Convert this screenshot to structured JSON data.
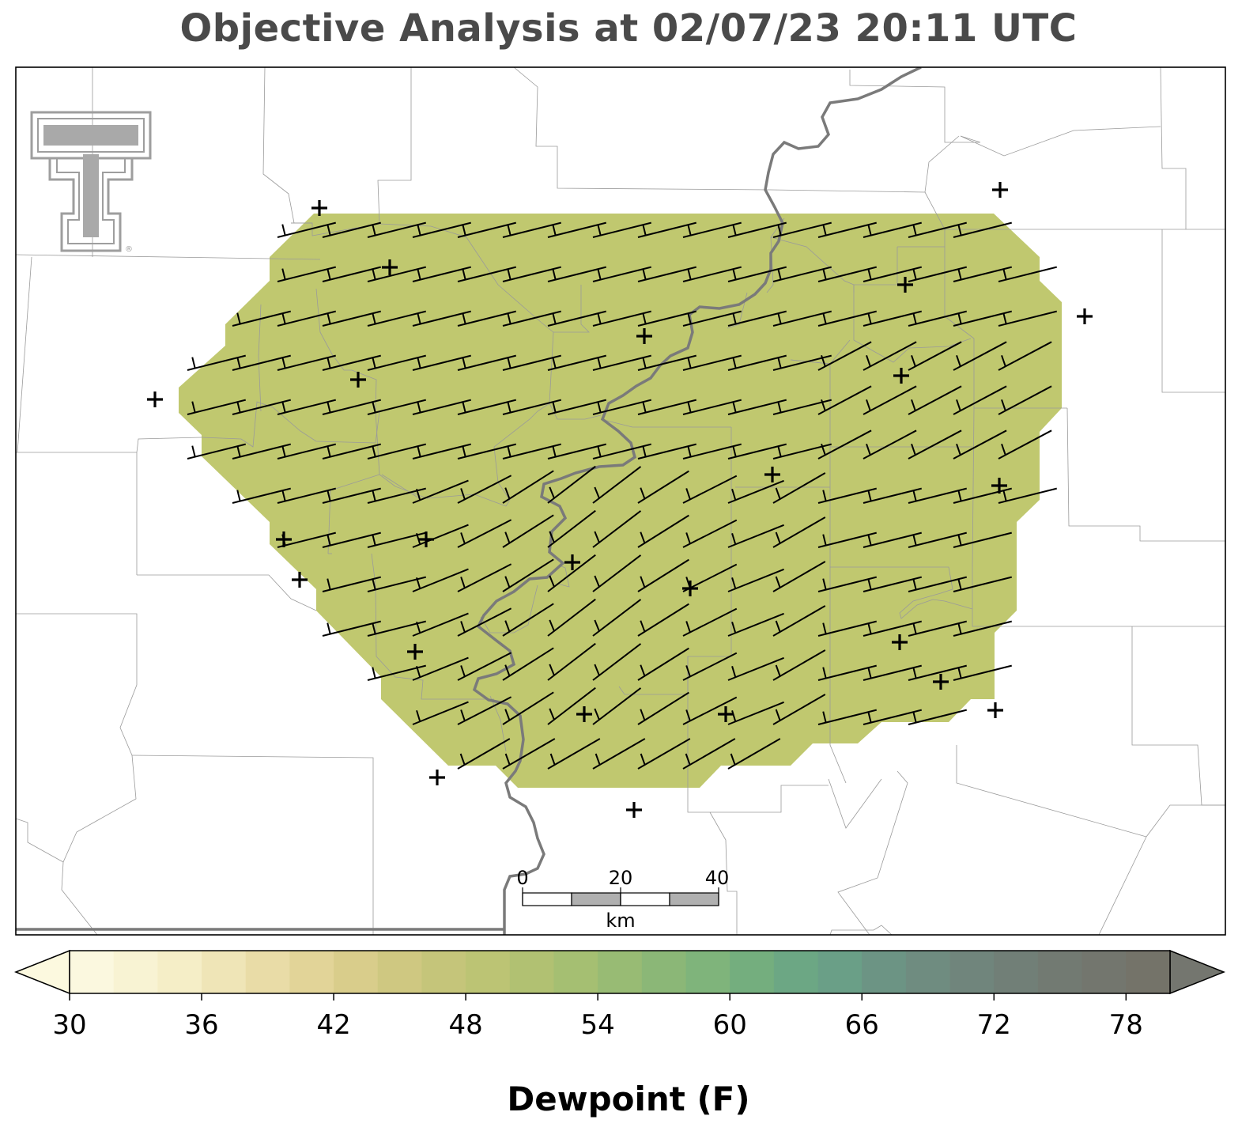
{
  "title": "Objective Analysis at 02/07/23 20:11 UTC",
  "colorbar": {
    "label": "Dewpoint (F)",
    "ticks": [
      "30",
      "36",
      "42",
      "48",
      "54",
      "60",
      "66",
      "72",
      "78"
    ],
    "min": 30,
    "max": 80,
    "step": 2,
    "colors": [
      "#fbf8df",
      "#f8f3d3",
      "#f5eec7",
      "#efe5b7",
      "#e9dca7",
      "#e2d498",
      "#d9cd8b",
      "#cfc881",
      "#c5c57a",
      "#bcc474",
      "#b1c172",
      "#a5bf72",
      "#98bb74",
      "#8bb777",
      "#7fb47b",
      "#74ae7e",
      "#6ca784",
      "#6a9f87",
      "#6c9484",
      "#6f8c80",
      "#70857c",
      "#717f77",
      "#727a72",
      "#73766e",
      "#747369"
    ],
    "under_color": "#fcf9df",
    "over_color": "#74766f"
  },
  "analysis": {
    "field_color": "#c0c86f",
    "field_value_f": 49
  },
  "scale_bar": {
    "unit": "km",
    "ticks": [
      "0",
      "20",
      "40"
    ]
  },
  "logo": {
    "icon": "texas-tech-double-t-icon",
    "mark": "®"
  }
}
